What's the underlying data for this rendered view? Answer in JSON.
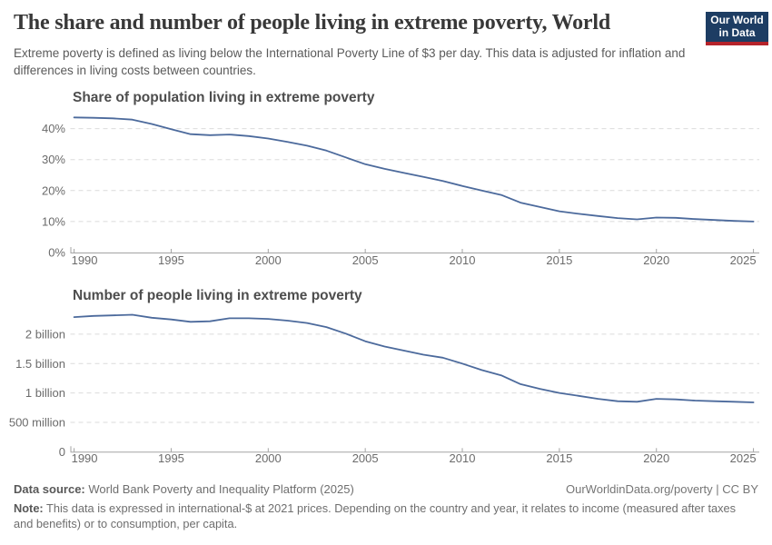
{
  "header": {
    "title": "The share and number of people living in extreme poverty, World",
    "subtitle": "Extreme poverty is defined as living below the International Poverty Line of $3 per day. This data is adjusted for inflation and differences in living costs between countries.",
    "logo": {
      "line1": "Our World",
      "line2": "in Data"
    }
  },
  "colors": {
    "line": "#4C6A9C",
    "grid": "#DBDBDB",
    "axis": "#A3A3A3",
    "axis_text": "#6B6B6B",
    "logo_navy": "#1D3D63",
    "logo_red": "#B5232A"
  },
  "footer": {
    "datasource_label": "Data source:",
    "datasource_value": "World Bank Poverty and Inequality Platform (2025)",
    "link": "OurWorldinData.org/poverty",
    "separator": "|",
    "license": "CC BY",
    "note_label": "Note:",
    "note_value": "This data is expressed in international-$ at 2021 prices. Depending on the country and year, it relates to income (measured after taxes and benefits) or to consumption, per capita."
  },
  "chart_data": [
    {
      "type": "line",
      "title": "Share of population living in extreme poverty",
      "yunit": "%",
      "ylim": [
        0,
        46
      ],
      "grid": true,
      "legend": "none",
      "x": [
        1990,
        1991,
        1992,
        1993,
        1994,
        1995,
        1996,
        1997,
        1998,
        1999,
        2000,
        2001,
        2002,
        2003,
        2004,
        2005,
        2006,
        2007,
        2008,
        2009,
        2010,
        2011,
        2012,
        2013,
        2014,
        2015,
        2016,
        2017,
        2018,
        2019,
        2020,
        2021,
        2022,
        2023,
        2024,
        2025
      ],
      "series": [
        {
          "name": "World",
          "values": [
            43.6,
            43.5,
            43.3,
            42.9,
            41.5,
            39.8,
            38.2,
            37.9,
            38.1,
            37.6,
            36.8,
            35.7,
            34.5,
            32.9,
            30.7,
            28.5,
            27.0,
            25.7,
            24.4,
            23.1,
            21.5,
            20.0,
            18.6,
            16.1,
            14.7,
            13.3,
            12.5,
            11.8,
            11.1,
            10.7,
            11.3,
            11.2,
            10.8,
            10.5,
            10.2,
            10.0
          ]
        }
      ],
      "y_ticks": [
        {
          "value": 40,
          "label": "40%"
        },
        {
          "value": 30,
          "label": "30%"
        },
        {
          "value": 20,
          "label": "20%"
        },
        {
          "value": 10,
          "label": "10%"
        },
        {
          "value": 0,
          "label": "0%"
        }
      ],
      "x_ticks": [
        1990,
        1995,
        2000,
        2005,
        2010,
        2015,
        2020,
        2025
      ]
    },
    {
      "type": "line",
      "title": "Number of people living in extreme poverty",
      "yunit": "billions of people",
      "ylim": [
        0,
        2.4
      ],
      "grid": true,
      "legend": "none",
      "x": [
        1990,
        1991,
        1992,
        1993,
        1994,
        1995,
        1996,
        1997,
        1998,
        1999,
        2000,
        2001,
        2002,
        2003,
        2004,
        2005,
        2006,
        2007,
        2008,
        2009,
        2010,
        2011,
        2012,
        2013,
        2014,
        2015,
        2016,
        2017,
        2018,
        2019,
        2020,
        2021,
        2022,
        2023,
        2024,
        2025
      ],
      "series": [
        {
          "name": "World",
          "values": [
            2.29,
            2.31,
            2.32,
            2.33,
            2.28,
            2.25,
            2.21,
            2.22,
            2.27,
            2.27,
            2.26,
            2.23,
            2.19,
            2.12,
            2.01,
            1.88,
            1.79,
            1.72,
            1.65,
            1.6,
            1.5,
            1.39,
            1.3,
            1.15,
            1.07,
            1.0,
            0.95,
            0.9,
            0.86,
            0.85,
            0.9,
            0.89,
            0.87,
            0.86,
            0.85,
            0.84
          ]
        }
      ],
      "y_ticks": [
        {
          "value": 2,
          "label": "2 billion"
        },
        {
          "value": 1.5,
          "label": "1.5 billion"
        },
        {
          "value": 1,
          "label": "1 billion"
        },
        {
          "value": 0.5,
          "label": "500 million"
        },
        {
          "value": 0,
          "label": "0"
        }
      ],
      "x_ticks": [
        1990,
        1995,
        2000,
        2005,
        2010,
        2015,
        2020,
        2025
      ]
    }
  ]
}
